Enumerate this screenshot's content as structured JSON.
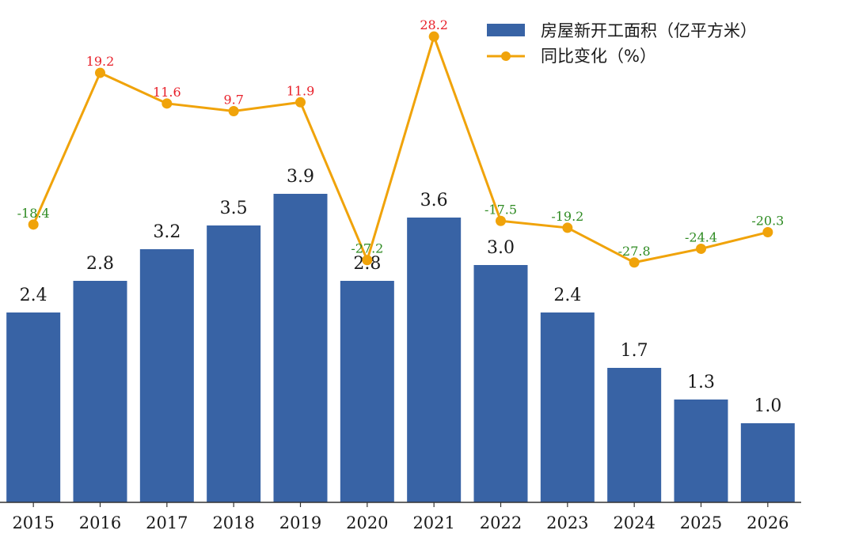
{
  "colors": {
    "bar": "#3863A5",
    "line": "#F0A30A",
    "positive_label": "#E8202A",
    "negative_label": "#2E8B22",
    "axis": "#333333"
  },
  "legend": {
    "bar_label": "房屋新开工面积（亿平方米）",
    "line_label": "同比变化（%）"
  },
  "chart_data": {
    "type": "bar",
    "categories": [
      "2015",
      "2016",
      "2017",
      "2018",
      "2019",
      "2020",
      "2021",
      "2022",
      "2023",
      "2024",
      "2025",
      "2026"
    ],
    "series": [
      {
        "name": "房屋新开工面积（亿平方米）",
        "type": "bar",
        "values": [
          2.4,
          2.8,
          3.2,
          3.5,
          3.9,
          2.8,
          3.6,
          3.0,
          2.4,
          1.7,
          1.3,
          1.0
        ],
        "value_labels": [
          "2.4",
          "2.8",
          "3.2",
          "3.5",
          "3.9",
          "2.8",
          "3.6",
          "3.0",
          "2.4",
          "1.7",
          "1.3",
          "1.0"
        ]
      },
      {
        "name": "同比变化（%）",
        "type": "line",
        "values": [
          -18.4,
          19.2,
          11.6,
          9.7,
          11.9,
          -27.2,
          28.2,
          -17.5,
          -19.2,
          -27.8,
          -24.4,
          -20.3
        ],
        "value_labels": [
          "-18.4",
          "19.2",
          "11.6",
          "9.7",
          "11.9",
          "-27.2",
          "28.2",
          "-17.5",
          "-19.2",
          "-27.8",
          "-24.4",
          "-20.3"
        ]
      }
    ],
    "legend_position": "top-right",
    "grid": false
  }
}
